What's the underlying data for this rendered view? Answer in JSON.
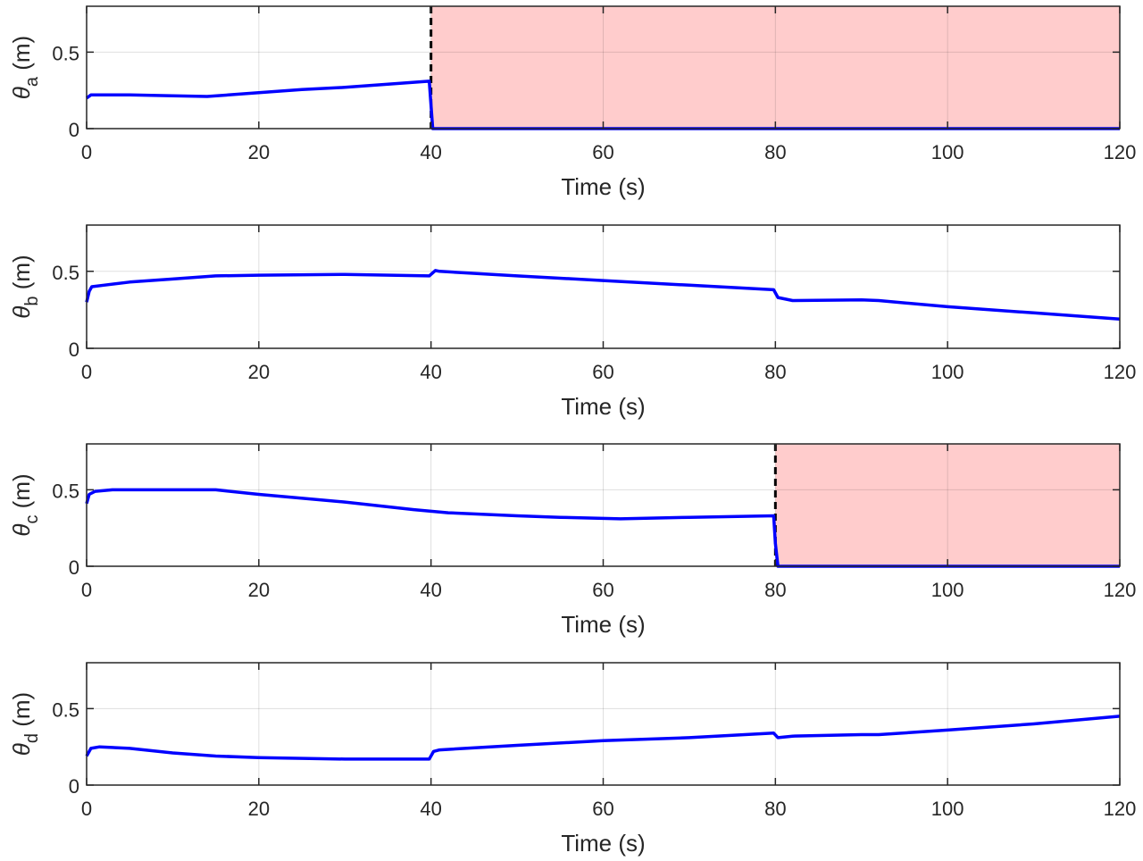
{
  "chart_data": [
    {
      "type": "line",
      "title": "",
      "ylabel": "θ_a (m)",
      "ylabel_symbol": "θ",
      "ylabel_sub": "a",
      "ylabel_unit": "(m)",
      "xlabel": "Time (s)",
      "xlim": [
        0,
        120
      ],
      "ylim": [
        0,
        0.8
      ],
      "xticks": [
        0,
        20,
        40,
        60,
        80,
        100,
        120
      ],
      "yticks": [
        0,
        0.5
      ],
      "ytick_labels": [
        "0",
        "0.5"
      ],
      "grid": true,
      "shaded_region": {
        "x_start": 40,
        "x_end": 120,
        "color": "#ffcccc",
        "dashed_line_x": 40
      },
      "series": [
        {
          "name": "theta_a",
          "color": "#0000ff",
          "x": [
            0,
            0.5,
            5,
            10,
            14,
            20,
            25,
            30,
            35,
            39.8,
            40,
            40.2,
            60,
            80,
            100,
            120
          ],
          "y": [
            0.2,
            0.22,
            0.22,
            0.215,
            0.21,
            0.235,
            0.255,
            0.27,
            0.29,
            0.31,
            0.15,
            0.0,
            0.0,
            0.0,
            0.0,
            0.0
          ]
        }
      ]
    },
    {
      "type": "line",
      "title": "",
      "ylabel": "θ_b (m)",
      "ylabel_symbol": "θ",
      "ylabel_sub": "b",
      "ylabel_unit": "(m)",
      "xlabel": "Time (s)",
      "xlim": [
        0,
        120
      ],
      "ylim": [
        0,
        0.8
      ],
      "xticks": [
        0,
        20,
        40,
        60,
        80,
        100,
        120
      ],
      "yticks": [
        0,
        0.5
      ],
      "ytick_labels": [
        "0",
        "0.5"
      ],
      "grid": true,
      "series": [
        {
          "name": "theta_b",
          "color": "#0000ff",
          "x": [
            0,
            0.3,
            0.6,
            2,
            5,
            10,
            15,
            20,
            30,
            39.8,
            40.5,
            41,
            50,
            60,
            70,
            79.8,
            80.3,
            82,
            90,
            92,
            100,
            110,
            120
          ],
          "y": [
            0.3,
            0.37,
            0.4,
            0.41,
            0.43,
            0.45,
            0.47,
            0.475,
            0.48,
            0.47,
            0.505,
            0.5,
            0.47,
            0.44,
            0.41,
            0.38,
            0.33,
            0.31,
            0.315,
            0.31,
            0.27,
            0.23,
            0.19
          ]
        }
      ]
    },
    {
      "type": "line",
      "title": "",
      "ylabel": "θ_c (m)",
      "ylabel_symbol": "θ",
      "ylabel_sub": "c",
      "ylabel_unit": "(m)",
      "xlabel": "Time (s)",
      "xlim": [
        0,
        120
      ],
      "ylim": [
        0,
        0.8
      ],
      "xticks": [
        0,
        20,
        40,
        60,
        80,
        100,
        120
      ],
      "yticks": [
        0,
        0.5
      ],
      "ytick_labels": [
        "0",
        "0.5"
      ],
      "grid": true,
      "shaded_region": {
        "x_start": 80,
        "x_end": 120,
        "color": "#ffcccc",
        "dashed_line_x": 80
      },
      "series": [
        {
          "name": "theta_c",
          "color": "#0000ff",
          "x": [
            0,
            0.3,
            1,
            3,
            10,
            15,
            20,
            30,
            38,
            42,
            50,
            55,
            62,
            70,
            79.8,
            80,
            80.3,
            100,
            120
          ],
          "y": [
            0.41,
            0.47,
            0.49,
            0.5,
            0.5,
            0.5,
            0.47,
            0.42,
            0.37,
            0.35,
            0.33,
            0.32,
            0.31,
            0.32,
            0.33,
            0.15,
            0.0,
            0.0,
            0.0
          ]
        }
      ]
    },
    {
      "type": "line",
      "title": "",
      "ylabel": "θ_d (m)",
      "ylabel_symbol": "θ",
      "ylabel_sub": "d",
      "ylabel_unit": "(m)",
      "xlabel": "Time (s)",
      "xlim": [
        0,
        120
      ],
      "ylim": [
        0,
        0.8
      ],
      "xticks": [
        0,
        20,
        40,
        60,
        80,
        100,
        120
      ],
      "yticks": [
        0,
        0.5
      ],
      "ytick_labels": [
        "0",
        "0.5"
      ],
      "grid": true,
      "series": [
        {
          "name": "theta_d",
          "color": "#0000ff",
          "x": [
            0,
            0.5,
            1.5,
            5,
            10,
            15,
            20,
            30,
            39.8,
            40.3,
            41,
            50,
            60,
            70,
            79.8,
            80.3,
            82,
            90,
            92,
            100,
            110,
            120
          ],
          "y": [
            0.19,
            0.24,
            0.25,
            0.24,
            0.21,
            0.19,
            0.18,
            0.17,
            0.17,
            0.22,
            0.23,
            0.26,
            0.29,
            0.31,
            0.34,
            0.31,
            0.32,
            0.33,
            0.33,
            0.36,
            0.4,
            0.45
          ]
        }
      ]
    }
  ]
}
